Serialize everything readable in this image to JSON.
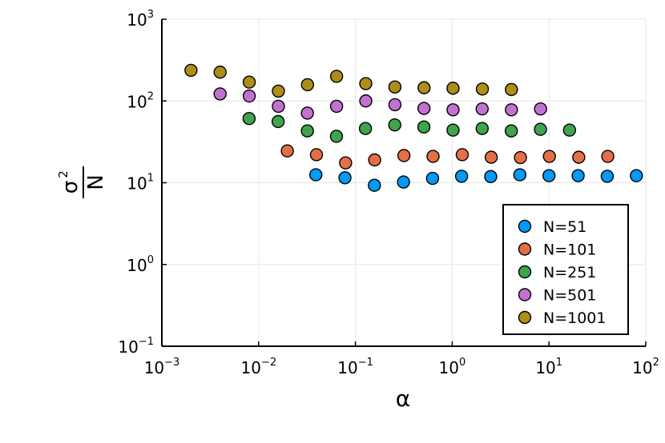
{
  "chart_data": {
    "type": "scatter",
    "xscale": "log",
    "yscale": "log",
    "xlim": [
      0.001,
      100
    ],
    "ylim": [
      0.1,
      1000
    ],
    "grid": true,
    "xlabel": "α",
    "ylabel": {
      "numerator": "σ",
      "superscript": "2",
      "denominator": "N"
    },
    "x_ticks": [
      {
        "base": "10",
        "exp": "−3"
      },
      {
        "base": "10",
        "exp": "−2"
      },
      {
        "base": "10",
        "exp": "−1"
      },
      {
        "base": "10",
        "exp": "0"
      },
      {
        "base": "10",
        "exp": "1"
      },
      {
        "base": "10",
        "exp": "2"
      }
    ],
    "y_ticks": [
      {
        "base": "10",
        "exp": "−1"
      },
      {
        "base": "10",
        "exp": "0"
      },
      {
        "base": "10",
        "exp": "1"
      },
      {
        "base": "10",
        "exp": "2"
      },
      {
        "base": "10",
        "exp": "3"
      }
    ],
    "legend_position": "bottom-right",
    "series": [
      {
        "name": "N=51",
        "color": "#009AFA",
        "points": [
          [
            0.039,
            12.5
          ],
          [
            0.078,
            11.5
          ],
          [
            0.157,
            9.3
          ],
          [
            0.314,
            10.2
          ],
          [
            0.627,
            11.3
          ],
          [
            1.25,
            12.0
          ],
          [
            2.5,
            11.9
          ],
          [
            5.0,
            12.5
          ],
          [
            10.0,
            12.2
          ],
          [
            20.0,
            12.2
          ],
          [
            40.0,
            12.0
          ],
          [
            80.0,
            12.2
          ]
        ]
      },
      {
        "name": "N=101",
        "color": "#E36F47",
        "points": [
          [
            0.0198,
            24.5
          ],
          [
            0.0396,
            22.0
          ],
          [
            0.0792,
            17.5
          ],
          [
            0.158,
            19.0
          ],
          [
            0.317,
            21.5
          ],
          [
            0.634,
            21.0
          ],
          [
            1.27,
            22.0
          ],
          [
            2.53,
            20.5
          ],
          [
            5.07,
            20.3
          ],
          [
            10.1,
            21.0
          ],
          [
            20.3,
            20.5
          ],
          [
            40.5,
            21.0
          ]
        ]
      },
      {
        "name": "N=251",
        "color": "#3EA44E",
        "points": [
          [
            0.00797,
            61
          ],
          [
            0.0159,
            56
          ],
          [
            0.0319,
            43
          ],
          [
            0.0637,
            37
          ],
          [
            0.127,
            46
          ],
          [
            0.255,
            51
          ],
          [
            0.51,
            48
          ],
          [
            1.02,
            44
          ],
          [
            2.04,
            46
          ],
          [
            4.08,
            43
          ],
          [
            8.16,
            45
          ],
          [
            16.3,
            44
          ]
        ]
      },
      {
        "name": "N=501",
        "color": "#C271D2",
        "points": [
          [
            0.004,
            122
          ],
          [
            0.008,
            115
          ],
          [
            0.016,
            86
          ],
          [
            0.0319,
            71
          ],
          [
            0.0639,
            86
          ],
          [
            0.128,
            100
          ],
          [
            0.256,
            90
          ],
          [
            0.511,
            81
          ],
          [
            1.02,
            78
          ],
          [
            2.04,
            80
          ],
          [
            4.09,
            78
          ],
          [
            8.18,
            80
          ]
        ]
      },
      {
        "name": "N=1001",
        "color": "#AC8E18",
        "points": [
          [
            0.002,
            237
          ],
          [
            0.004,
            225
          ],
          [
            0.008,
            170
          ],
          [
            0.016,
            132
          ],
          [
            0.032,
            158
          ],
          [
            0.0639,
            200
          ],
          [
            0.128,
            163
          ],
          [
            0.256,
            148
          ],
          [
            0.512,
            145
          ],
          [
            1.02,
            143
          ],
          [
            2.05,
            140
          ],
          [
            4.09,
            138
          ]
        ]
      }
    ]
  }
}
